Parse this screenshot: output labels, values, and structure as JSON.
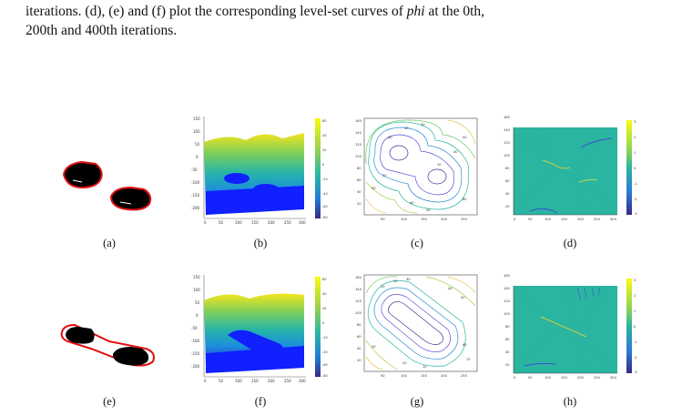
{
  "caption": {
    "prefix": "iterations. (d), (e) and (f) plot the corresponding level-set curves of ",
    "italic": "phi",
    "suffix": " at the 0th,",
    "line2": "200th and 400th iterations."
  },
  "panels": [
    {
      "id": "a",
      "label": "(a)"
    },
    {
      "id": "b",
      "label": "(b)"
    },
    {
      "id": "c",
      "label": "(c)"
    },
    {
      "id": "d",
      "label": "(d)"
    },
    {
      "id": "e",
      "label": "(e)"
    },
    {
      "id": "f",
      "label": "(f)"
    },
    {
      "id": "g",
      "label": "(g)"
    },
    {
      "id": "h",
      "label": "(h)"
    }
  ],
  "surface_axes": {
    "z_ticks": [
      "150",
      "100",
      "50",
      "0",
      "-50",
      "-100",
      "-150",
      "-200"
    ],
    "x_ticks": [
      "0",
      "50",
      "100",
      "150",
      "200",
      "250",
      "300"
    ],
    "colorbar_top": [
      "60",
      "40",
      "20",
      "0",
      "-20",
      "-40",
      "-60",
      "-80"
    ],
    "colorbar_bottom": [
      "60",
      "40",
      "20",
      "0",
      "-20",
      "-40",
      "-60",
      "-80"
    ]
  },
  "contour_axes": {
    "y_ticks": [
      "160",
      "140",
      "120",
      "100",
      "80",
      "60",
      "40",
      "20"
    ],
    "x_ticks": [
      "50",
      "100",
      "150",
      "200",
      "250"
    ],
    "labels_top": [
      "10",
      "20",
      "30",
      "40",
      "50",
      "10",
      "20",
      "30",
      "40",
      "50",
      "60"
    ],
    "labels_bottom": [
      "10",
      "20",
      "30",
      "40",
      "50",
      "60",
      "70",
      "10",
      "20",
      "30"
    ]
  },
  "gradient_axes": {
    "y_ticks": [
      "160",
      "140",
      "120",
      "100",
      "80",
      "60",
      "40",
      "20"
    ],
    "x_ticks": [
      "0",
      "50",
      "100",
      "150",
      "200",
      "250",
      "300"
    ],
    "colorbar": [
      "3",
      "2",
      "1",
      "0",
      "-1",
      "-2",
      "-3"
    ]
  },
  "colors": {
    "contour_low": "#5a4fd0",
    "contour_high": "#f2c23a",
    "gradient_bg": "#2ab5a0",
    "curve_red": "#e01010",
    "parula_blue": "#1020ff",
    "parula_yellow": "#f5e51c"
  }
}
